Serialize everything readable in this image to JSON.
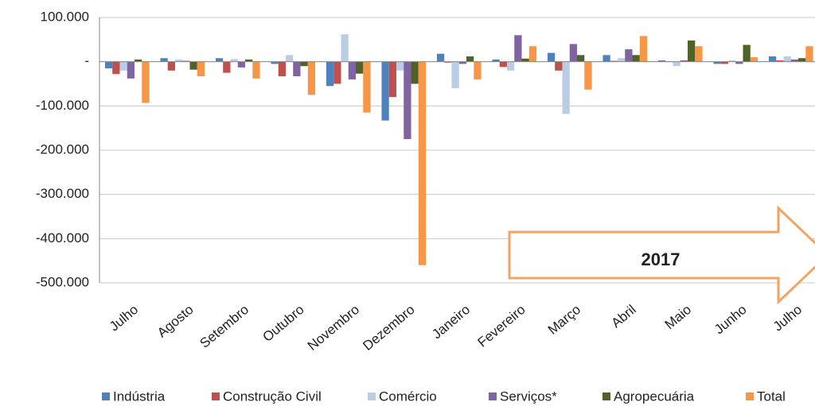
{
  "chart_data": {
    "type": "bar",
    "annotation": "2017",
    "categories": [
      "Julho",
      "Agosto",
      "Setembro",
      "Outubro",
      "Novembro",
      "Dezembro",
      "Janeiro",
      "Fevereiro",
      "Março",
      "Abril",
      "Maio",
      "Junho",
      "Julho"
    ],
    "series": [
      {
        "name": "Indústria",
        "color": "#4f81bd",
        "values": [
          -15000,
          8000,
          8000,
          -5000,
          -55000,
          -133000,
          18000,
          5000,
          20000,
          15000,
          3000,
          -5000,
          12000
        ]
      },
      {
        "name": "Construção Civil",
        "color": "#c0504d",
        "values": [
          -28000,
          -20000,
          -25000,
          -33000,
          -50000,
          -80000,
          -2000,
          -12000,
          -20000,
          2000,
          1000,
          -5000,
          3000
        ]
      },
      {
        "name": "Comércio",
        "color": "#b9cde5",
        "values": [
          -20000,
          5000,
          6000,
          15000,
          62000,
          -20000,
          -60000,
          -20000,
          -118000,
          8000,
          -10000,
          3000,
          12000
        ]
      },
      {
        "name": "Serviços*",
        "color": "#8064a2",
        "values": [
          -38000,
          2000,
          -13000,
          -33000,
          -40000,
          -175000,
          -5000,
          60000,
          40000,
          28000,
          3000,
          -5000,
          5000
        ]
      },
      {
        "name": "Agropecuária",
        "color": "#4f6228",
        "values": [
          5000,
          -18000,
          5000,
          -10000,
          -27000,
          -50000,
          12000,
          7000,
          15000,
          15000,
          48000,
          38000,
          8000
        ]
      },
      {
        "name": "Total",
        "color": "#f79646",
        "values": [
          -93000,
          -33000,
          -38000,
          -75000,
          -115000,
          -460000,
          -40000,
          35000,
          -63000,
          58000,
          35000,
          10000,
          35000
        ]
      }
    ],
    "ylim": [
      -500000,
      100000
    ],
    "yticks": [
      {
        "value": -500000,
        "label": "-500.000"
      },
      {
        "value": -400000,
        "label": "-400.000"
      },
      {
        "value": -300000,
        "label": "-300.000"
      },
      {
        "value": -200000,
        "label": "-200.000"
      },
      {
        "value": -100000,
        "label": "-100.000"
      },
      {
        "value": 0,
        "label": "-"
      },
      {
        "value": 100000,
        "label": "100.000"
      }
    ],
    "grid": true
  }
}
